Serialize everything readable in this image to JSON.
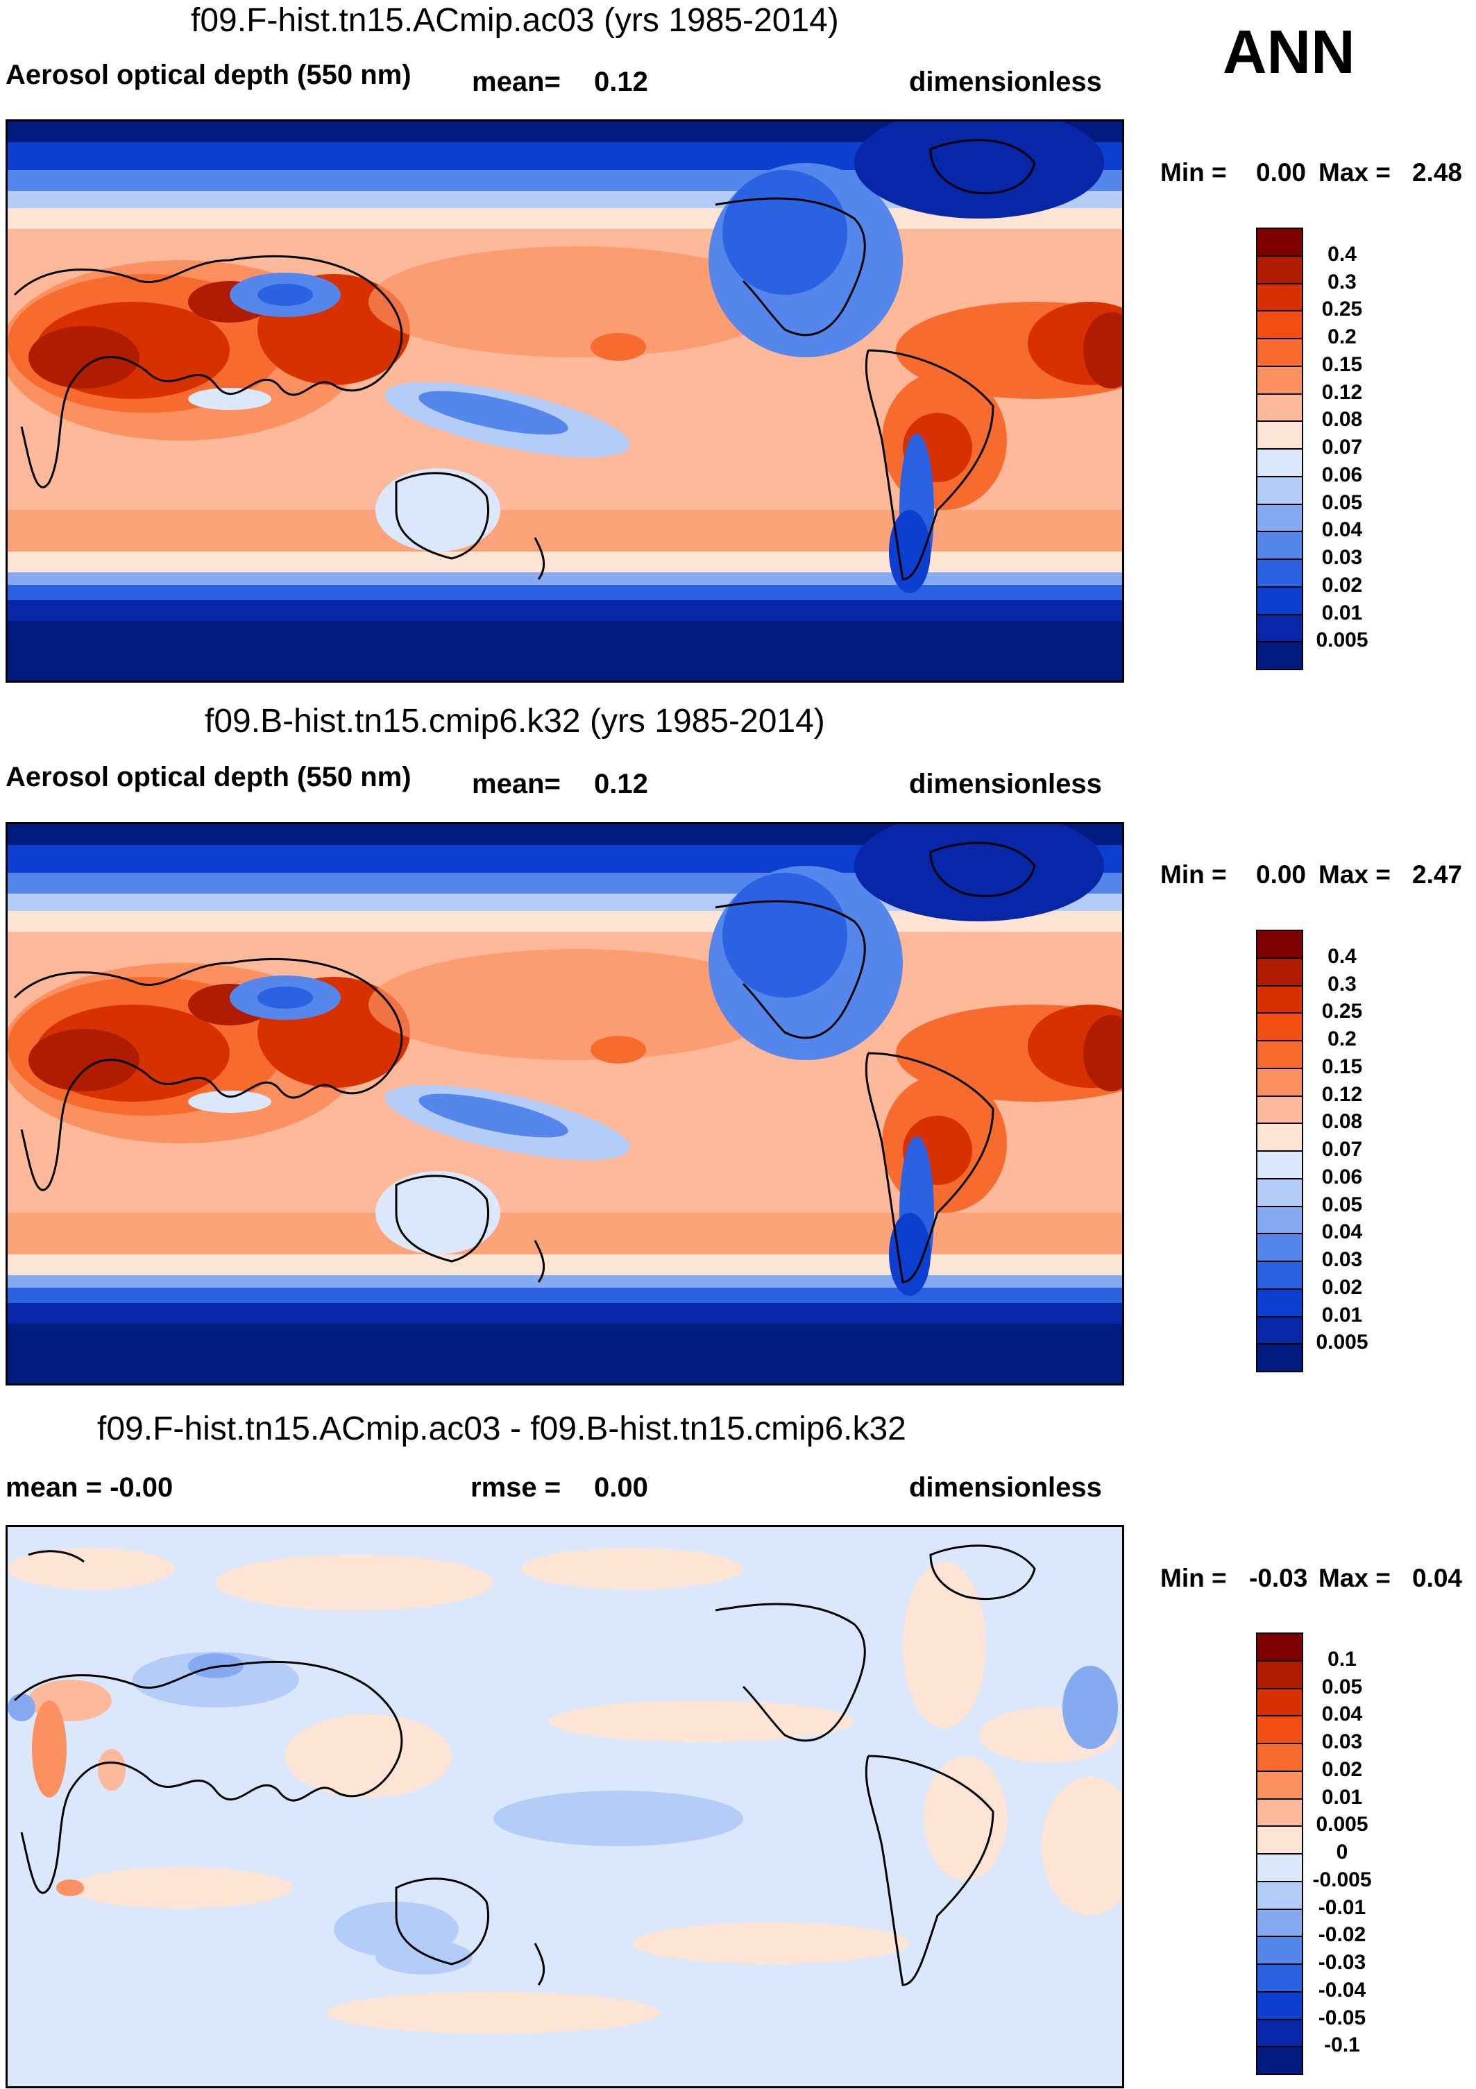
{
  "season": "ANN",
  "panels": [
    {
      "title": "f09.F-hist.tn15.ACmip.ac03 (yrs 1985-2014)",
      "left_label": "Aerosol optical depth (550 nm)",
      "mid_label": "mean=",
      "mid_value": "0.12",
      "units": "dimensionless",
      "min_label": "Min =",
      "min_value": "0.00",
      "max_label": "Max =",
      "max_value": "2.48",
      "palette": "aod",
      "scale_labels": [
        "0.4",
        "0.3",
        "0.25",
        "0.2",
        "0.15",
        "0.12",
        "0.08",
        "0.07",
        "0.06",
        "0.05",
        "0.04",
        "0.03",
        "0.02",
        "0.01",
        "0.005"
      ]
    },
    {
      "title": "f09.B-hist.tn15.cmip6.k32 (yrs 1985-2014)",
      "left_label": "Aerosol optical depth (550 nm)",
      "mid_label": "mean=",
      "mid_value": "0.12",
      "units": "dimensionless",
      "min_label": "Min =",
      "min_value": "0.00",
      "max_label": "Max =",
      "max_value": "2.47",
      "palette": "aod",
      "scale_labels": [
        "0.4",
        "0.3",
        "0.25",
        "0.2",
        "0.15",
        "0.12",
        "0.08",
        "0.07",
        "0.06",
        "0.05",
        "0.04",
        "0.03",
        "0.02",
        "0.01",
        "0.005"
      ]
    },
    {
      "title": "f09.F-hist.tn15.ACmip.ac03 - f09.B-hist.tn15.cmip6.k32",
      "left_label": "mean =  -0.00",
      "mid_label": "rmse =",
      "mid_value": "0.00",
      "units": "dimensionless",
      "min_label": "Min =",
      "min_value": "-0.03",
      "max_label": "Max =",
      "max_value": "0.04",
      "palette": "diff",
      "scale_labels": [
        "0.1",
        "0.05",
        "0.04",
        "0.03",
        "0.02",
        "0.01",
        "0.005",
        "0",
        "-0.005",
        "-0.01",
        "-0.02",
        "-0.03",
        "-0.04",
        "-0.05",
        "-0.1"
      ]
    }
  ],
  "colors": {
    "aod": [
      "#7f0000",
      "#b01c00",
      "#d83100",
      "#f24d12",
      "#f86b2e",
      "#fb9160",
      "#fdb999",
      "#fde4d4",
      "#dbe7fb",
      "#b4ccf8",
      "#86aaf1",
      "#5586eb",
      "#2a62e2",
      "#0c3fd0",
      "#0826a8",
      "#001a80"
    ],
    "diff": [
      "#7f0000",
      "#b01c00",
      "#d83100",
      "#f24d12",
      "#f86b2e",
      "#fb9160",
      "#fdb999",
      "#fde4d4",
      "#dbe7fb",
      "#b4ccf8",
      "#86aaf1",
      "#5586eb",
      "#2a62e2",
      "#0c3fd0",
      "#0826a8",
      "#001a80"
    ]
  }
}
